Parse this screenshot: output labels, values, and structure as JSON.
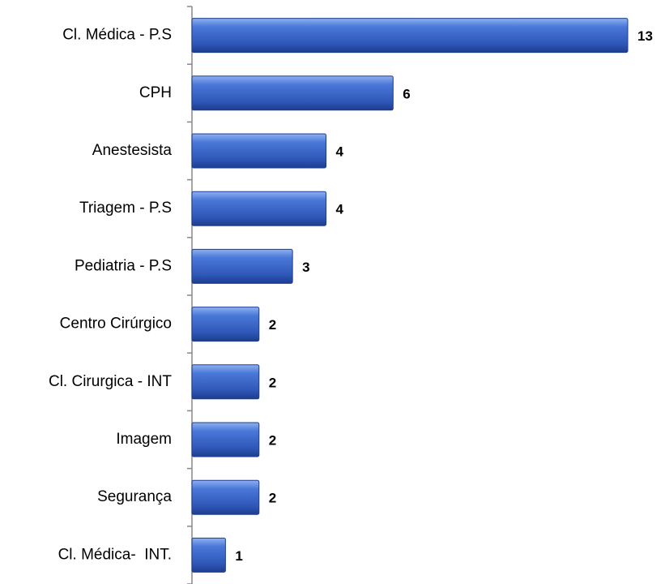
{
  "chart_data": {
    "type": "bar",
    "orientation": "horizontal",
    "categories": [
      "Cl. Médica - P.S",
      "CPH",
      "Anestesista",
      "Triagem - P.S",
      "Pediatria - P.S",
      "Centro Cirúrgico",
      "Cl. Cirurgica - INT",
      "Imagem",
      "Segurança",
      "Cl. Médica-  INT."
    ],
    "values": [
      13,
      6,
      4,
      4,
      3,
      2,
      2,
      2,
      2,
      1
    ],
    "color": "#3a63c4",
    "xlim": [
      0,
      13
    ]
  }
}
